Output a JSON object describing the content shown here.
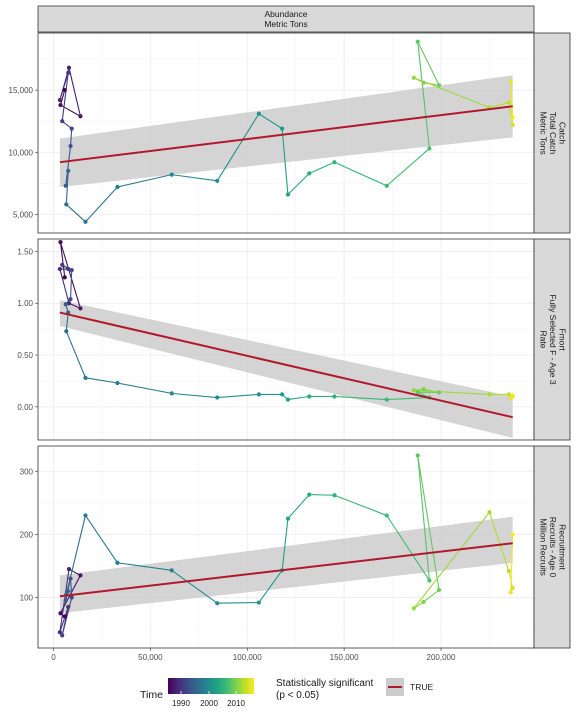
{
  "strip_top": {
    "line1": "Abundance",
    "line2": "Metric Tons"
  },
  "colors": {
    "viridis": [
      "#440154",
      "#482878",
      "#3e4989",
      "#31688e",
      "#26828e",
      "#1f9e89",
      "#35b779",
      "#6ece58",
      "#b5de2b",
      "#fde725"
    ],
    "trend": "#b2182b",
    "band": "#cccccc",
    "strip_fill": "#d9d9d9",
    "grid": "#ebebeb"
  },
  "legend": {
    "time_title": "Time",
    "time_ticks": [
      "1990",
      "2000",
      "2010"
    ],
    "sig_title_1": "Statistically significant",
    "sig_title_2": "(p < 0.05)",
    "sig_entry": "TRUE"
  },
  "chart_data": {
    "type": "scatter",
    "x_label": "Abundance (Metric Tons)",
    "xlim": [
      -8000,
      248000
    ],
    "x_ticks": [
      0,
      50000,
      100000,
      150000,
      200000
    ],
    "x_tick_labels": [
      "0",
      "50,000",
      "100,000",
      "150,000",
      "200,000"
    ],
    "x_abundance": [
      5800,
      3600,
      13900,
      8000,
      3300,
      7600,
      4500,
      9400,
      8800,
      6300,
      7600,
      6600,
      16500,
      33000,
      61000,
      84500,
      106000,
      118000,
      121000,
      132000,
      145000,
      172000,
      194000,
      188000,
      199000,
      191000,
      186000,
      225000,
      235000,
      237000,
      236000,
      237000
    ],
    "years": [
      1982,
      1983,
      1984,
      1985,
      1986,
      1987,
      1988,
      1989,
      1990,
      1991,
      1992,
      1993,
      1994,
      1995,
      1996,
      1997,
      1998,
      1999,
      2000,
      2001,
      2002,
      2003,
      2004,
      2005,
      2006,
      2007,
      2008,
      2009,
      2010,
      2011,
      2012,
      2013
    ],
    "panels": [
      {
        "strip": [
          "Catch",
          "Total Catch",
          "Metric Tons"
        ],
        "ylim": [
          3500,
          19600
        ],
        "y_ticks": [
          5000,
          10000,
          15000
        ],
        "y_tick_labels": [
          "5,000",
          "10,000",
          "15,000"
        ],
        "y": [
          15000,
          13800,
          12900,
          16800,
          14200,
          16400,
          12500,
          11900,
          10500,
          7300,
          8500,
          5800,
          4400,
          7200,
          8200,
          7700,
          13100,
          11900,
          6600,
          8300,
          9200,
          7300,
          10300,
          18900,
          15400,
          15600,
          16000,
          13600,
          14000,
          12200,
          15700,
          12800
        ],
        "trend": {
          "x": [
            3300,
            237000
          ],
          "y": [
            9200,
            13700
          ],
          "lower": [
            7200,
            11200
          ],
          "upper": [
            11100,
            16200
          ]
        }
      },
      {
        "strip": [
          "Fmort",
          "Fully Selected F - Age 3",
          "Rate"
        ],
        "ylim": [
          -0.32,
          1.62
        ],
        "y_ticks": [
          0,
          0.5,
          1,
          1.5
        ],
        "y_tick_labels": [
          "0.00",
          "0.50",
          "1.00",
          "1.50"
        ],
        "y": [
          1.25,
          1.59,
          0.95,
          1.0,
          1.33,
          1.33,
          1.37,
          1.32,
          1.04,
          0.99,
          0.91,
          0.73,
          0.28,
          0.23,
          0.13,
          0.09,
          0.12,
          0.12,
          0.07,
          0.1,
          0.1,
          0.07,
          0.09,
          0.14,
          0.14,
          0.17,
          0.16,
          0.12,
          0.12,
          0.1,
          0.08,
          0.11
        ],
        "trend": {
          "x": [
            3300,
            237000
          ],
          "y": [
            0.91,
            -0.1
          ],
          "lower": [
            0.78,
            -0.3
          ],
          "upper": [
            1.03,
            0.1
          ]
        }
      },
      {
        "strip": [
          "Recruitment",
          "Recruits - Age 0",
          "Million Recruits"
        ],
        "ylim": [
          20,
          340
        ],
        "y_ticks": [
          100,
          200,
          300
        ],
        "y_tick_labels": [
          "100",
          "200",
          "300"
        ],
        "y": [
          70,
          75,
          135,
          145,
          45,
          85,
          40,
          100,
          130,
          95,
          110,
          105,
          230,
          155,
          143,
          91,
          92,
          143,
          225,
          263,
          262,
          230,
          127,
          325,
          112,
          93,
          83,
          235,
          142,
          115,
          108,
          200
        ],
        "trend": {
          "x": [
            3300,
            237000
          ],
          "y": [
            102,
            186
          ],
          "lower": [
            75,
            155
          ],
          "upper": [
            135,
            228
          ]
        }
      }
    ]
  }
}
